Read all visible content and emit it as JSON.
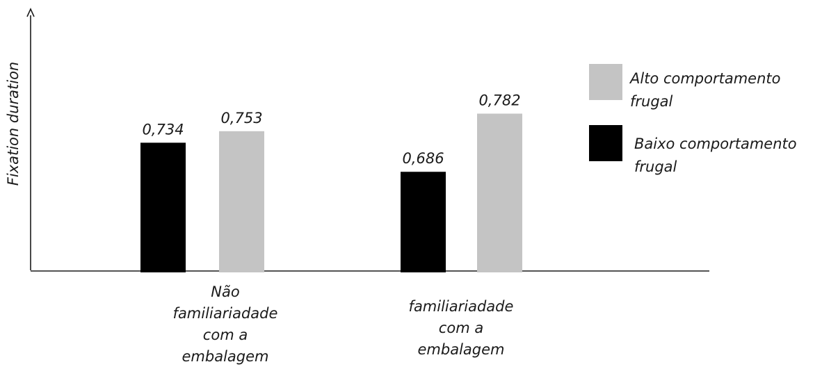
{
  "chart_data": {
    "type": "bar",
    "title": "",
    "xlabel": "",
    "ylabel": "Fixation duration",
    "categories": [
      [
        "Não",
        "familiariadade",
        "com a",
        "embalagem"
      ],
      [
        "familiariadade",
        "com a",
        "embalagem"
      ]
    ],
    "series": [
      {
        "name": "Baixo comportamento frugal",
        "legend_lines": [
          "Baixo comportamento",
          "frugal"
        ],
        "color": "#000000",
        "values": [
          0.734,
          0.686
        ],
        "labels": [
          "0,734",
          "0,686"
        ]
      },
      {
        "name": "Alto comportamento frugal",
        "legend_lines": [
          "Alto comportamento",
          "frugal"
        ],
        "color": "#c4c4c4",
        "values": [
          0.753,
          0.782
        ],
        "labels": [
          "0,753",
          "0,782"
        ]
      }
    ],
    "legend_order": [
      1,
      0
    ],
    "legend_position": "right",
    "ylim": [
      0.52,
      0.8
    ],
    "y_ticks": false,
    "grid": false
  }
}
